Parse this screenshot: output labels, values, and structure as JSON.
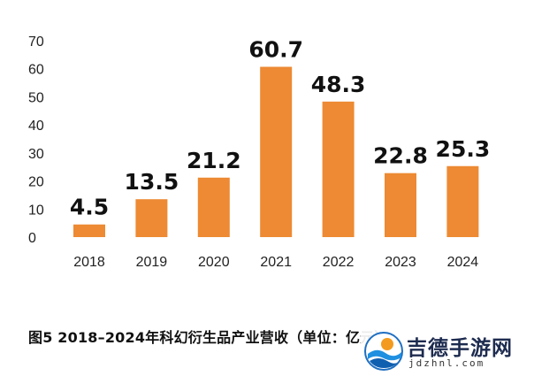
{
  "chart_data": {
    "type": "bar",
    "title": "图5 2018–2024年科幻衍生品产业营收（单位：亿元）",
    "categories": [
      "2018",
      "2019",
      "2020",
      "2021",
      "2022",
      "2023",
      "2024"
    ],
    "values": [
      4.5,
      13.5,
      21.2,
      60.7,
      48.3,
      22.8,
      25.3
    ],
    "value_labels": [
      "4.5",
      "13.5",
      "21.2",
      "60.7",
      "48.3",
      "22.8",
      "25.3"
    ],
    "xlabel": "",
    "ylabel": "",
    "ylim": [
      0,
      70
    ],
    "yticks": [
      0,
      10,
      20,
      30,
      40,
      50,
      60,
      70
    ],
    "grid": false,
    "legend": "none",
    "bar_color": "#ED8A33"
  },
  "watermark": {
    "title": "吉德手游网",
    "url": "jdzhnl.com",
    "icon": "wave-logo-icon"
  }
}
